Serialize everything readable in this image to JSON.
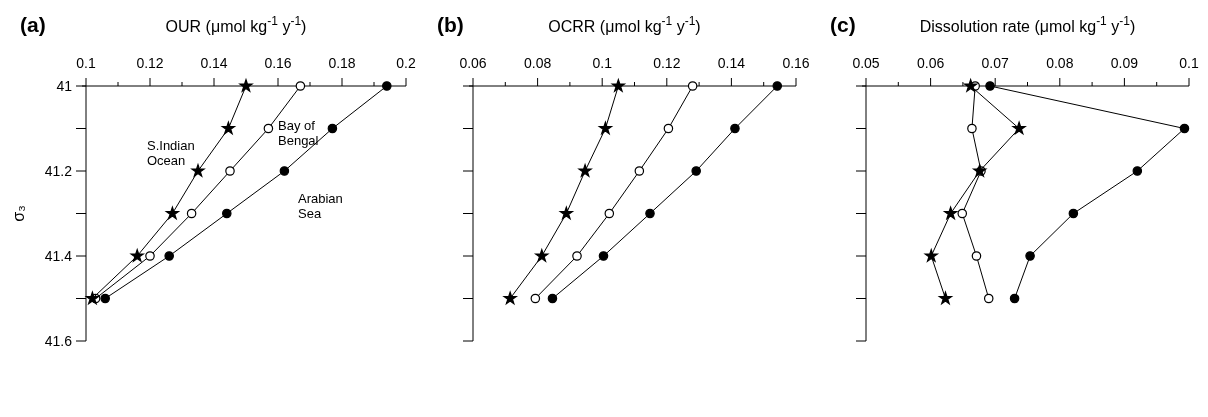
{
  "chart_data": [
    {
      "type": "line",
      "title": "(a)",
      "xlabel": "OUR (μmol kg$^{-1}$ y$^{-1}$)",
      "ylabel": "σ₃",
      "xlim": [
        0.1,
        0.2
      ],
      "xticks": [
        0.1,
        {
          "value": 0.11,
          "label": null
        },
        0.12,
        {
          "value": 0.13,
          "label": null
        },
        0.14,
        {
          "value": 0.15,
          "label": null
        },
        0.16,
        {
          "value": 0.17,
          "label": null
        },
        0.18,
        {
          "value": 0.19,
          "label": null
        },
        0.2
      ],
      "ylim": [
        41.6,
        41
      ],
      "yticks": [
        41,
        {
          "value": 41.1,
          "label": null
        },
        41.2,
        {
          "value": 41.3,
          "label": null
        },
        41.4,
        {
          "value": 41.5,
          "label": null
        },
        41.6
      ],
      "series": [
        {
          "color": "#000000",
          "marker": "star",
          "x": [
            0.15,
            0.1445,
            0.135,
            0.127,
            0.116,
            0.102
          ],
          "values": [
            41,
            41.1,
            41.2,
            41.3,
            41.4,
            41.5
          ]
        },
        {
          "color": "#000000",
          "marker": "circle",
          "x": [
            0.167,
            0.157,
            0.145,
            0.133,
            0.12,
            0.103
          ],
          "values": [
            41,
            41.1,
            41.2,
            41.3,
            41.4,
            41.5
          ]
        },
        {
          "color": "#000000",
          "marker": "circle",
          "x": [
            0.194,
            0.177,
            0.162,
            0.144,
            0.126,
            0.106
          ],
          "values": [
            41,
            41.1,
            41.2,
            41.3,
            41.4,
            41.5
          ]
        }
      ],
      "annotations": [
        "S.Indian\nOcean",
        "Bay of\nBengal",
        "Arabian\nSea"
      ]
    },
    {
      "type": "line",
      "title": "(b)",
      "xlabel": "OCRR (μmol kg$^{-1}$ y$^{-1}$)",
      "tick_labels": "x",
      "xlim": [
        0.06,
        0.16
      ],
      "xticks": [
        0.06,
        {
          "value": 0.07,
          "label": null
        },
        0.08,
        {
          "value": 0.09,
          "label": null
        },
        0.1,
        {
          "value": 0.11,
          "label": null
        },
        0.12,
        {
          "value": 0.13,
          "label": null
        },
        0.14,
        {
          "value": 0.15,
          "label": null
        },
        0.16
      ],
      "ylim": [
        41.6,
        41
      ],
      "yticks": [
        41,
        {
          "value": 41.1,
          "label": null
        },
        41.2,
        {
          "value": 41.3,
          "label": null
        },
        41.4,
        {
          "value": 41.5,
          "label": null
        },
        41.6
      ],
      "series": [
        {
          "color": "#000000",
          "marker": "star",
          "x": [
            0.105,
            0.101,
            0.0947,
            0.0889,
            0.0813,
            0.0715
          ],
          "values": [
            41,
            41.1,
            41.2,
            41.3,
            41.4,
            41.5
          ]
        },
        {
          "color": "#000000",
          "marker": "circle",
          "x": [
            0.128,
            0.1205,
            0.1115,
            0.1022,
            0.0922,
            0.0793
          ],
          "values": [
            41,
            41.1,
            41.2,
            41.3,
            41.4,
            41.5
          ]
        },
        {
          "color": "#000000",
          "marker": "circle",
          "x": [
            0.1542,
            0.1411,
            0.1291,
            0.1148,
            0.1004,
            0.0846
          ],
          "values": [
            41,
            41.1,
            41.2,
            41.3,
            41.4,
            41.5
          ]
        }
      ]
    },
    {
      "type": "line",
      "title": "(c)",
      "xlabel": "Dissolution rate (μmol kg$^{-1}$ y$^{-1}$)",
      "tick_labels": "x",
      "xlim": [
        0.05,
        0.1
      ],
      "xticks": [
        0.05,
        {
          "value": 0.055,
          "label": null
        },
        0.06,
        {
          "value": 0.065,
          "label": null
        },
        0.07,
        {
          "value": 0.075,
          "label": null
        },
        0.08,
        {
          "value": 0.085,
          "label": null
        },
        0.09,
        {
          "value": 0.095,
          "label": null
        },
        0.1
      ],
      "ylim": [
        41.6,
        41
      ],
      "yticks": [
        41,
        {
          "value": 41.1,
          "label": null
        },
        41.2,
        {
          "value": 41.3,
          "label": null
        },
        41.4,
        {
          "value": 41.5,
          "label": null
        },
        41.6
      ],
      "series": [
        {
          "color": "#000000",
          "marker": "star",
          "x": [
            0.0662,
            0.0737,
            0.0676,
            0.0631,
            0.0601,
            0.0623
          ],
          "values": [
            41,
            41.1,
            41.2,
            41.3,
            41.4,
            41.5
          ]
        },
        {
          "color": "#000000",
          "marker": "circle",
          "x": [
            0.0669,
            0.0664,
            0.0678,
            0.0649,
            0.0671,
            0.069
          ],
          "values": [
            41,
            41.1,
            41.2,
            41.3,
            41.4,
            41.5
          ]
        },
        {
          "color": "#000000",
          "marker": "circle",
          "x": [
            0.0692,
            0.0993,
            0.092,
            0.0821,
            0.0754,
            0.073
          ],
          "values": [
            41,
            41.1,
            41.2,
            41.3,
            41.4,
            41.5
          ]
        }
      ]
    }
  ]
}
